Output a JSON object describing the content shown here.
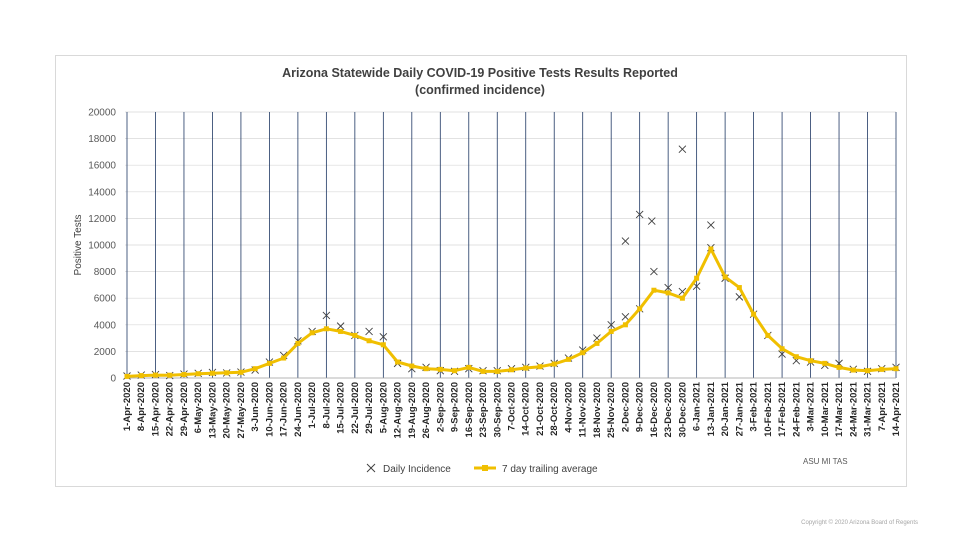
{
  "chart_data": {
    "type": "line",
    "title_line1": "Arizona Statewide  Daily COVID-19 Positive Tests Results Reported",
    "title_line2": "(confirmed incidence)",
    "ylabel": "Positive Tests",
    "xlabel": "",
    "ylim": [
      0,
      20000
    ],
    "y_ticks": [
      "0",
      "2000",
      "4000",
      "6000",
      "8000",
      "10000",
      "12000",
      "14000",
      "16000",
      "18000",
      "20000"
    ],
    "grid": true,
    "legend_position": "bottom",
    "categories": [
      "1-Apr-2020",
      "8-Apr-2020",
      "15-Apr-2020",
      "22-Apr-2020",
      "29-Apr-2020",
      "6-May-2020",
      "13-May-2020",
      "20-May-2020",
      "27-May-2020",
      "3-Jun-2020",
      "10-Jun-2020",
      "17-Jun-2020",
      "24-Jun-2020",
      "1-Jul-2020",
      "8-Jul-2020",
      "15-Jul-2020",
      "22-Jul-2020",
      "29-Jul-2020",
      "5-Aug-2020",
      "12-Aug-2020",
      "19-Aug-2020",
      "26-Aug-2020",
      "2-Sep-2020",
      "9-Sep-2020",
      "16-Sep-2020",
      "23-Sep-2020",
      "30-Sep-2020",
      "7-Oct-2020",
      "14-Oct-2020",
      "21-Oct-2020",
      "28-Oct-2020",
      "4-Nov-2020",
      "11-Nov-2020",
      "18-Nov-2020",
      "25-Nov-2020",
      "2-Dec-2020",
      "9-Dec-2020",
      "16-Dec-2020",
      "23-Dec-2020",
      "30-Dec-2020",
      "6-Jan-2021",
      "13-Jan-2021",
      "20-Jan-2021",
      "27-Jan-2021",
      "3-Feb-2021",
      "10-Feb-2021",
      "17-Feb-2021",
      "24-Feb-2021",
      "3-Mar-2021",
      "10-Mar-2021",
      "17-Mar-2021",
      "24-Mar-2021",
      "31-Mar-2021",
      "7-Apr-2021",
      "14-Apr-2021"
    ],
    "series": [
      {
        "name": "Daily Incidence",
        "marker": "x",
        "color": "#404040",
        "values": [
          150,
          220,
          260,
          180,
          300,
          350,
          420,
          380,
          450,
          600,
          1200,
          1700,
          2800,
          3500,
          4700,
          3900,
          3200,
          3500,
          3100,
          1100,
          700,
          800,
          550,
          500,
          700,
          550,
          550,
          700,
          800,
          900,
          1100,
          1500,
          2100,
          3000,
          4000,
          4600,
          5200,
          8000,
          6800,
          6500,
          6900,
          9800,
          7500,
          6100,
          4800,
          3200,
          1800,
          1300,
          1200,
          950,
          1100,
          650,
          500,
          700,
          800
        ]
      },
      {
        "name": "7 day trailing average",
        "marker": "line",
        "color": "#f0bf00",
        "values": [
          120,
          180,
          220,
          210,
          260,
          320,
          360,
          390,
          430,
          700,
          1100,
          1500,
          2600,
          3400,
          3700,
          3500,
          3200,
          2800,
          2500,
          1200,
          900,
          700,
          650,
          550,
          800,
          500,
          500,
          620,
          750,
          850,
          1050,
          1400,
          1900,
          2600,
          3500,
          4000,
          5200,
          6600,
          6400,
          6000,
          7500,
          9700,
          7600,
          6800,
          4800,
          3200,
          2200,
          1600,
          1300,
          1100,
          800,
          600,
          550,
          650,
          700
        ]
      }
    ],
    "annotations": {
      "outliers": [
        {
          "x": "30-Dec-2020",
          "y": 17200
        },
        {
          "x": "9-Dec-2020",
          "y": 12300
        },
        {
          "x": "13-Dec-2020",
          "y": 11800
        },
        {
          "x": "2-Dec-2020",
          "y": 10300
        },
        {
          "x": "13-Jan-2021",
          "y": 11500
        }
      ],
      "watermark": "ASU MI TAS"
    }
  },
  "footer": {
    "copyright": "Copyright © 2020 Arizona Board of Regents"
  }
}
